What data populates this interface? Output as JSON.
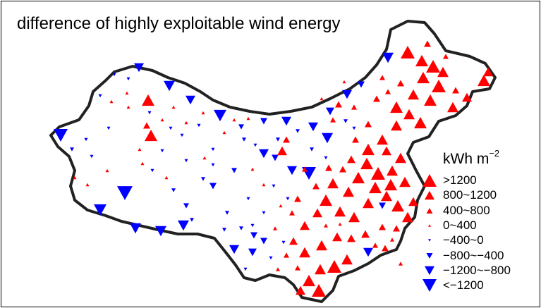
{
  "title": "difference of highly exploitable wind energy",
  "legend": {
    "unit_main": "kWh m",
    "unit_exp": "−2",
    "items": [
      {
        "label": ">1200",
        "color": "#ff0000",
        "dir": "up",
        "size": 20
      },
      {
        "label": "800~1200",
        "color": "#ff0000",
        "dir": "up",
        "size": 14
      },
      {
        "label": "400~800",
        "color": "#ff0000",
        "dir": "up",
        "size": 9
      },
      {
        "label": "0~400",
        "color": "#ff0000",
        "dir": "up",
        "size": 4
      },
      {
        "label": "−400~0",
        "color": "#0000ff",
        "dir": "down",
        "size": 4
      },
      {
        "label": "−800~−400",
        "color": "#0000ff",
        "dir": "down",
        "size": 9
      },
      {
        "label": "−1200~−800",
        "color": "#0000ff",
        "dir": "down",
        "size": 14
      },
      {
        "label": "<−1200",
        "color": "#0000ff",
        "dir": "down",
        "size": 20
      }
    ]
  },
  "colors": {
    "positive": "#ff0000",
    "negative": "#0000ff",
    "border": "#222222"
  }
}
